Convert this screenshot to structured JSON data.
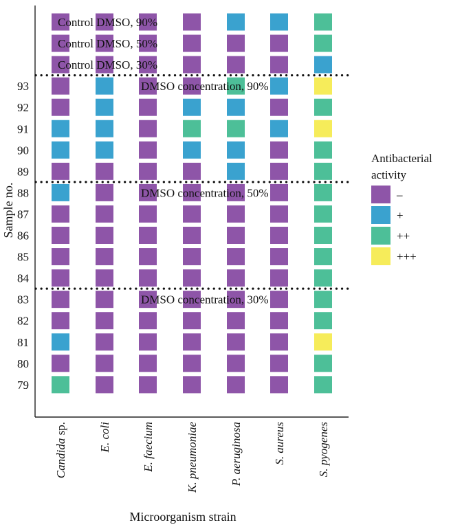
{
  "chart_data": {
    "type": "heatmap",
    "xlabel": "Microorganism strain",
    "ylabel": "Sample no.",
    "strains": [
      {
        "prefix": "Candida",
        "suffix": " sp."
      },
      {
        "prefix": "E. coli",
        "suffix": ""
      },
      {
        "prefix": "E. faecium",
        "suffix": ""
      },
      {
        "prefix": "K. pneumoniae",
        "suffix": ""
      },
      {
        "prefix": "P. aeruginosa",
        "suffix": ""
      },
      {
        "prefix": "S. aureus",
        "suffix": ""
      },
      {
        "prefix": "S. pyogenes",
        "suffix": ""
      }
    ],
    "legend": {
      "title_line1": "Antibacterial",
      "title_line2": "activity",
      "levels": [
        {
          "label": "–",
          "color": "#8e55a8"
        },
        {
          "label": "+",
          "color": "#3aa2cf"
        },
        {
          "label": "++",
          "color": "#4dbf98"
        },
        {
          "label": "+++",
          "color": "#f6ec5a"
        }
      ]
    },
    "rows": [
      {
        "label": "",
        "overlay": "Control DMSO, 90%",
        "values": [
          0,
          0,
          0,
          0,
          1,
          1,
          2
        ]
      },
      {
        "label": "",
        "overlay": "Control DMSO, 50%",
        "values": [
          0,
          0,
          0,
          0,
          0,
          0,
          2
        ]
      },
      {
        "label": "",
        "overlay": "Control DMSO, 30%",
        "values": [
          0,
          0,
          0,
          0,
          0,
          0,
          1
        ]
      },
      {
        "label": "93",
        "overlay": "DMSO concentration, 90%",
        "values": [
          0,
          1,
          0,
          0,
          2,
          1,
          3
        ]
      },
      {
        "label": "92",
        "overlay": "",
        "values": [
          0,
          1,
          0,
          1,
          1,
          0,
          2
        ]
      },
      {
        "label": "91",
        "overlay": "",
        "values": [
          1,
          1,
          0,
          2,
          2,
          1,
          3
        ]
      },
      {
        "label": "90",
        "overlay": "",
        "values": [
          1,
          1,
          0,
          1,
          1,
          0,
          2
        ]
      },
      {
        "label": "89",
        "overlay": "",
        "values": [
          0,
          0,
          0,
          0,
          1,
          0,
          2
        ]
      },
      {
        "label": "88",
        "overlay": "DMSO concentration, 50%",
        "values": [
          1,
          0,
          0,
          0,
          0,
          0,
          2
        ]
      },
      {
        "label": "87",
        "overlay": "",
        "values": [
          0,
          0,
          0,
          0,
          0,
          0,
          2
        ]
      },
      {
        "label": "86",
        "overlay": "",
        "values": [
          0,
          0,
          0,
          0,
          0,
          0,
          2
        ]
      },
      {
        "label": "85",
        "overlay": "",
        "values": [
          0,
          0,
          0,
          0,
          0,
          0,
          2
        ]
      },
      {
        "label": "84",
        "overlay": "",
        "values": [
          0,
          0,
          0,
          0,
          0,
          0,
          2
        ]
      },
      {
        "label": "83",
        "overlay": "DMSO concentration, 30%",
        "values": [
          0,
          0,
          0,
          0,
          0,
          0,
          2
        ]
      },
      {
        "label": "82",
        "overlay": "",
        "values": [
          0,
          0,
          0,
          0,
          0,
          0,
          2
        ]
      },
      {
        "label": "81",
        "overlay": "",
        "values": [
          1,
          0,
          0,
          0,
          0,
          0,
          3
        ]
      },
      {
        "label": "80",
        "overlay": "",
        "values": [
          0,
          0,
          0,
          0,
          0,
          0,
          2
        ]
      },
      {
        "label": "79",
        "overlay": "",
        "values": [
          2,
          0,
          0,
          0,
          0,
          0,
          2
        ]
      }
    ],
    "separators_after_row": [
      2,
      7,
      12
    ],
    "grid": false
  }
}
